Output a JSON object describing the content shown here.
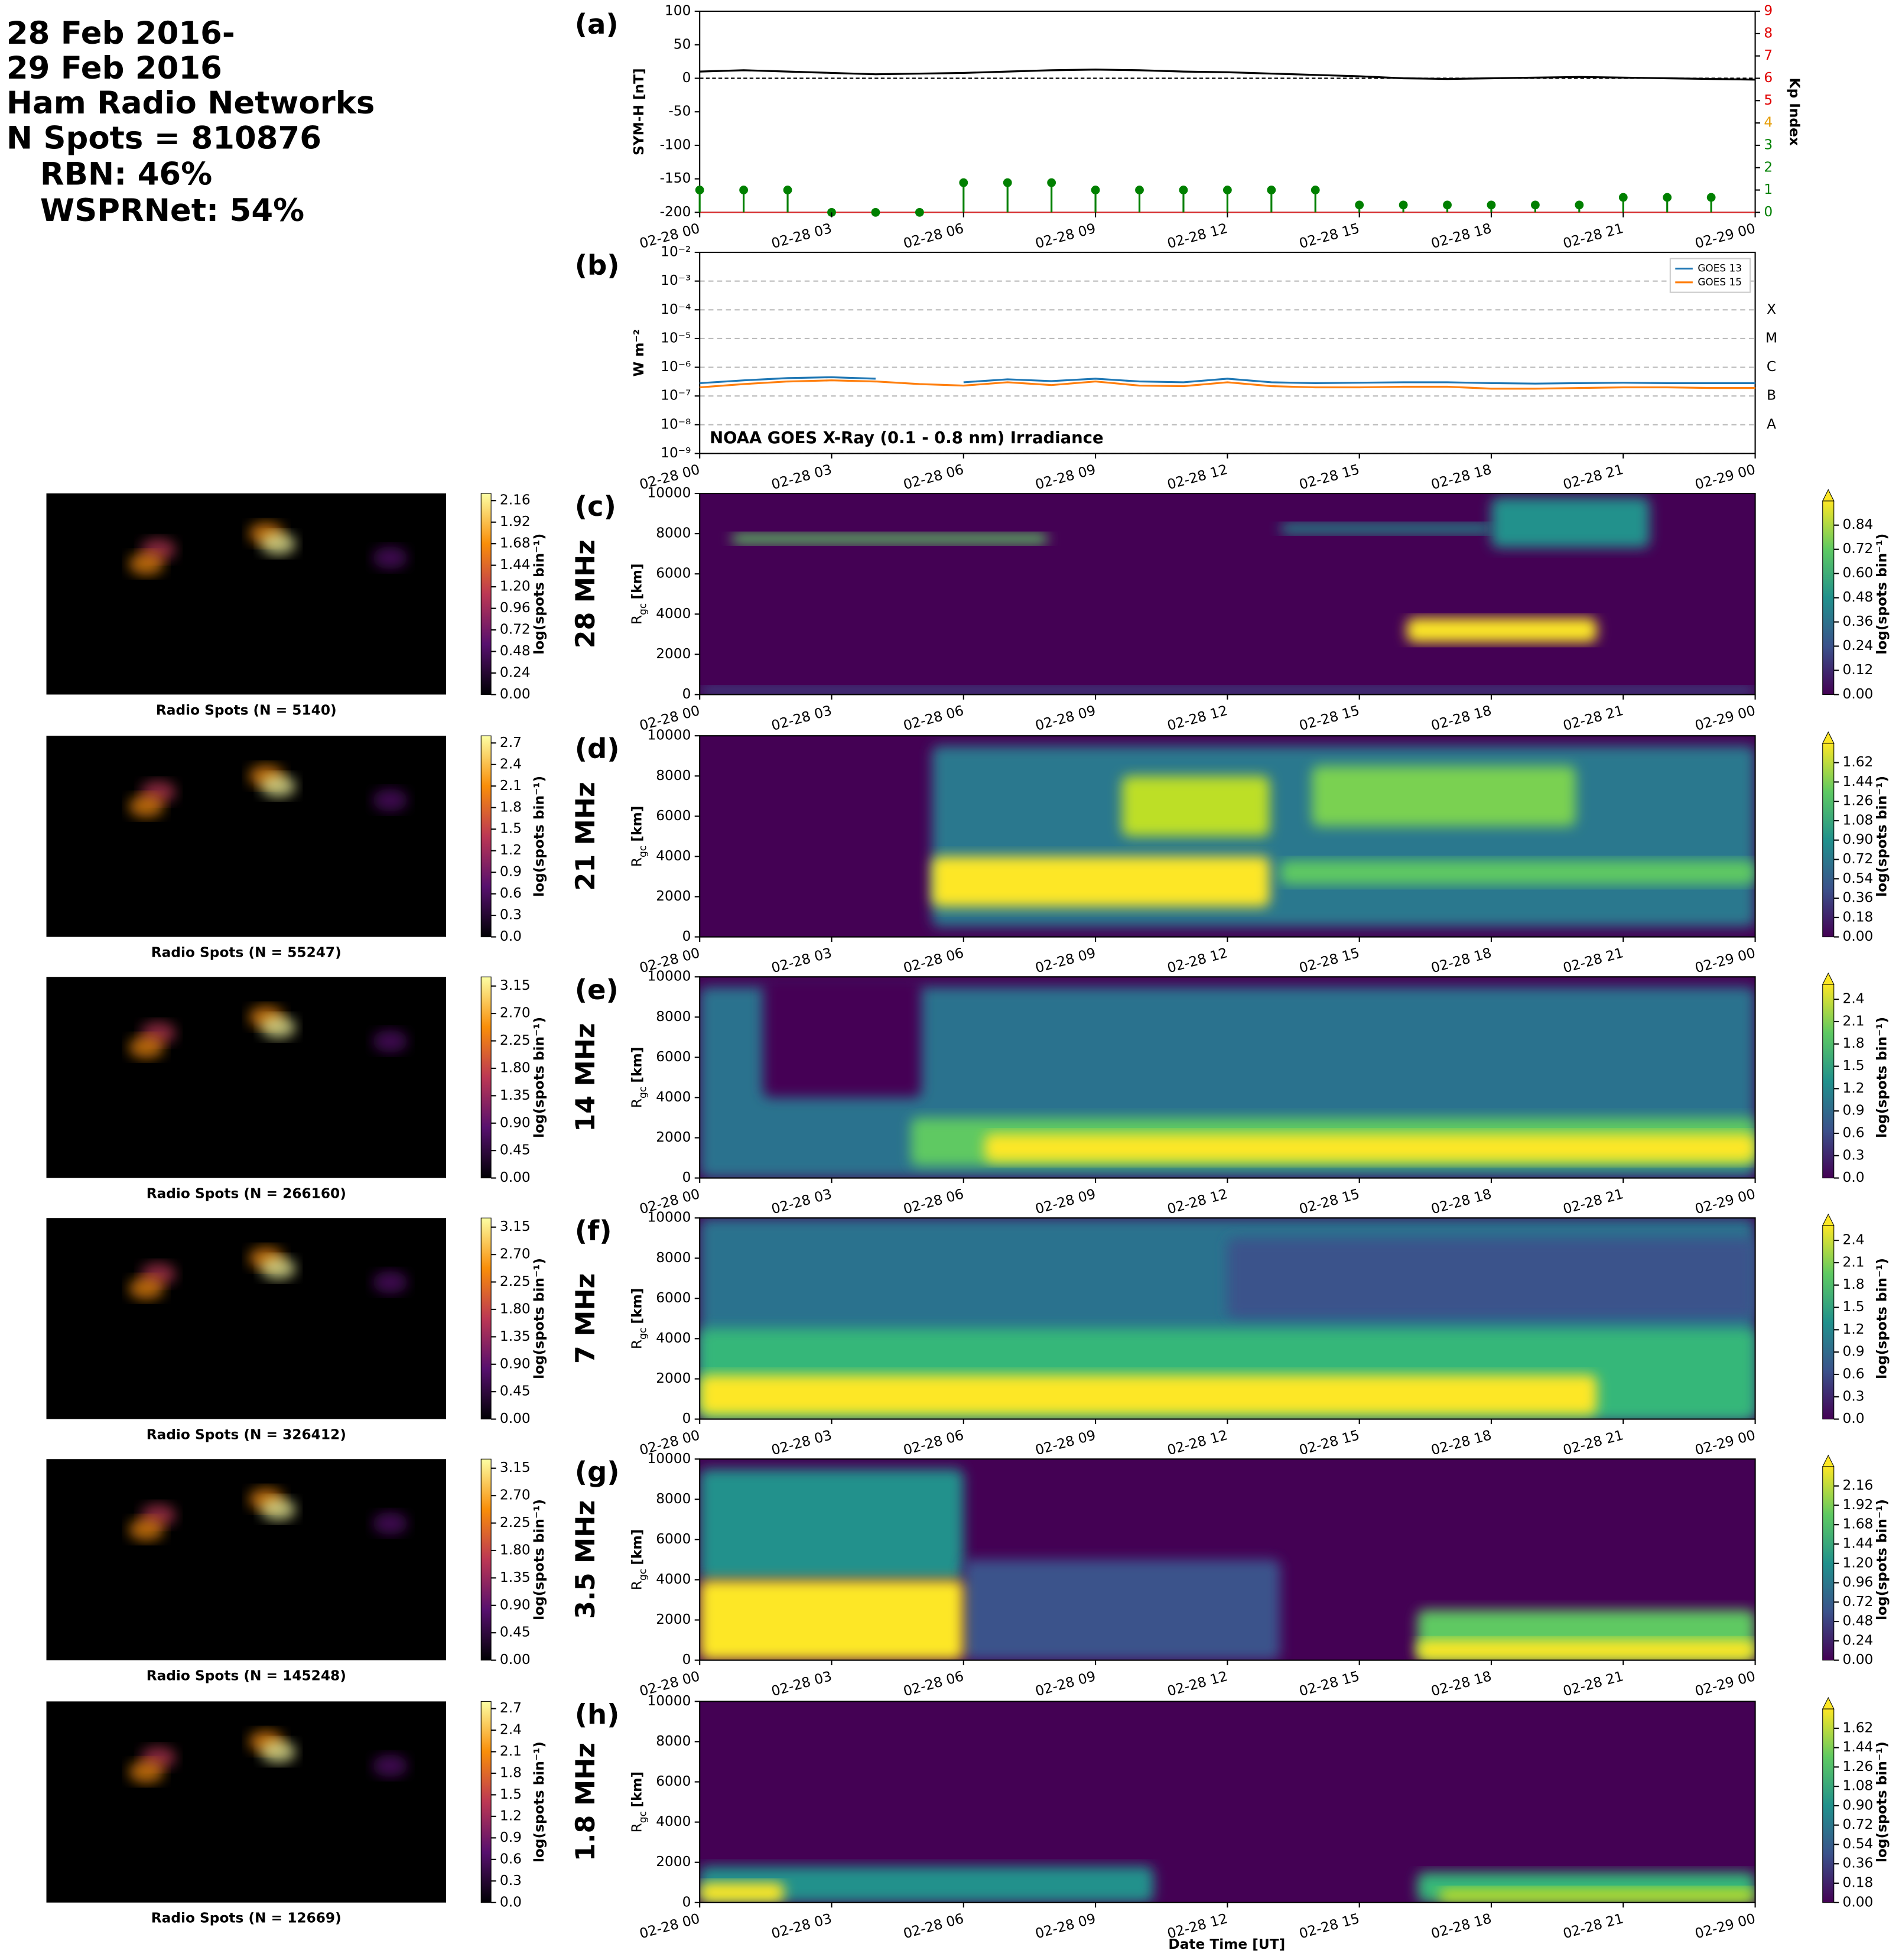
{
  "header": {
    "lines": [
      "28 Feb 2016-",
      "29 Feb 2016",
      "Ham Radio Networks",
      "N Spots = 810876",
      "RBN: 46%",
      "WSPRNet: 54%"
    ]
  },
  "time_axis": {
    "x": [
      "02-28 00",
      "02-28 01",
      "02-28 02",
      "02-28 03",
      "02-28 04",
      "02-28 05",
      "02-28 06",
      "02-28 07",
      "02-28 08",
      "02-28 09",
      "02-28 10",
      "02-28 11",
      "02-28 12",
      "02-28 13",
      "02-28 14",
      "02-28 15",
      "02-28 16",
      "02-28 17",
      "02-28 18",
      "02-28 19",
      "02-28 20",
      "02-28 21",
      "02-28 22",
      "02-28 23",
      "02-29 00"
    ],
    "xticks": [
      "02-28 00",
      "02-28 03",
      "02-28 06",
      "02-28 09",
      "02-28 12",
      "02-28 15",
      "02-28 18",
      "02-28 21",
      "02-29 00"
    ],
    "xlabel": "Date Time [UT]"
  },
  "chart_data": [
    {
      "type": "line",
      "panel": "(a)",
      "ylabel": "SYM-H [nT]",
      "y2label": "Kp Index",
      "ylim": [
        -200,
        100
      ],
      "yticks": [
        -200,
        -150,
        -100,
        -50,
        0,
        50,
        100
      ],
      "y2lim": [
        0,
        9
      ],
      "y2ticks": [
        0,
        1,
        2,
        3,
        4,
        5,
        6,
        7,
        8,
        9
      ],
      "y2tick_colors": [
        "#008000",
        "#008000",
        "#008000",
        "#008000",
        "#e69b00",
        "#e00000",
        "#e00000",
        "#e00000",
        "#e00000",
        "#e00000"
      ],
      "zero_line": true,
      "series": [
        {
          "color": "#000000",
          "values": [
            10,
            12,
            10,
            8,
            6,
            7,
            8,
            10,
            12,
            13,
            12,
            10,
            9,
            7,
            5,
            3,
            0,
            -1,
            0,
            1,
            2,
            1,
            0,
            -1,
            -2
          ]
        },
        {
          "color": "#008000",
          "axis": "y2",
          "values": [
            1,
            1,
            1,
            0,
            0,
            0,
            1.33,
            1.33,
            1.33,
            1,
            1,
            1,
            1,
            1,
            1,
            0.33,
            0.33,
            0.33,
            0.33,
            0.33,
            0.33,
            0.67,
            0.67,
            0.67
          ]
        }
      ]
    },
    {
      "type": "log-line",
      "panel": "(b)",
      "ylabel": "W m⁻²",
      "log_scale": true,
      "grid": true,
      "ylim": [
        1e-09,
        0.01
      ],
      "yticks": [
        {
          "value": 1e-09,
          "label": "10⁻⁹"
        },
        {
          "value": 1e-08,
          "label": "10⁻⁸"
        },
        {
          "value": 1e-07,
          "label": "10⁻⁷"
        },
        {
          "value": 1e-06,
          "label": "10⁻⁶"
        },
        {
          "value": 1e-05,
          "label": "10⁻⁵"
        },
        {
          "value": 0.0001,
          "label": "10⁻⁴"
        },
        {
          "value": 0.001,
          "label": "10⁻³"
        },
        {
          "value": 0.01,
          "label": "10⁻²"
        }
      ],
      "flare_classes": [
        {
          "value": 1e-08,
          "label": "A"
        },
        {
          "value": 1e-07,
          "label": "B"
        },
        {
          "value": 1e-06,
          "label": "C"
        },
        {
          "value": 1e-05,
          "label": "M"
        },
        {
          "value": 0.0001,
          "label": "X"
        }
      ],
      "annotation": "NOAA GOES X-Ray (0.1 - 0.8 nm) Irradiance",
      "legend_loc": "upper right",
      "series": [
        {
          "name": "GOES 13",
          "color": "#1f77b4",
          "values": [
            2.8e-07,
            3.5e-07,
            4.2e-07,
            4.5e-07,
            4e-07,
            null,
            3e-07,
            3.8e-07,
            3.3e-07,
            4e-07,
            3.2e-07,
            3e-07,
            4e-07,
            3e-07,
            2.8e-07,
            2.9e-07,
            3e-07,
            3e-07,
            2.8e-07,
            2.7e-07,
            2.8e-07,
            2.9e-07,
            2.8e-07,
            2.8e-07,
            2.8e-07
          ]
        },
        {
          "name": "GOES 15",
          "color": "#ff7f0e",
          "values": [
            2e-07,
            2.6e-07,
            3.2e-07,
            3.5e-07,
            3.2e-07,
            2.6e-07,
            2.3e-07,
            3e-07,
            2.4e-07,
            3.2e-07,
            2.3e-07,
            2.2e-07,
            3e-07,
            2.2e-07,
            2e-07,
            2e-07,
            2.1e-07,
            2.1e-07,
            1.8e-07,
            1.8e-07,
            1.9e-07,
            2e-07,
            2e-07,
            1.9e-07,
            1.9e-07
          ]
        }
      ]
    },
    {
      "type": "heatmap",
      "panel": "(c)",
      "band": "28 MHz",
      "ylabel": "R",
      "ylabel_sub": "gc",
      "ylabel_unit": "[km]",
      "ylim": [
        0,
        10000
      ],
      "yticks": [
        0,
        2000,
        4000,
        6000,
        8000,
        10000
      ],
      "colorbar": {
        "label": "log(spots bin⁻¹)",
        "extend": "max",
        "clim": [
          0,
          0.96
        ],
        "ticks": [
          {
            "value": 0,
            "label": "0.00"
          },
          0.12,
          0.24,
          0.36,
          0.48,
          {
            "value": 0.6,
            "label": "0.60"
          },
          0.72,
          0.84
        ]
      },
      "map": {
        "title": "Radio Spots (N = 5140)",
        "clabel": "log(spots bin⁻¹)",
        "clim": [
          0,
          2.24
        ],
        "cticks": [
          {
            "value": 0,
            "label": "0.00"
          },
          0.24,
          0.48,
          0.72,
          0.96,
          {
            "value": 1.2,
            "label": "1.20"
          },
          1.44,
          1.68,
          1.92,
          2.16
        ]
      }
    },
    {
      "type": "heatmap",
      "panel": "(d)",
      "band": "21 MHz",
      "ylabel": "R",
      "ylabel_sub": "gc",
      "ylabel_unit": "[km]",
      "ylim": [
        0,
        10000
      ],
      "yticks": [
        0,
        2000,
        4000,
        6000,
        8000,
        10000
      ],
      "colorbar": {
        "label": "log(spots bin⁻¹)",
        "extend": "max",
        "clim": [
          0,
          1.8
        ],
        "ticks": [
          {
            "value": 0,
            "label": "0.00"
          },
          0.18,
          0.36,
          0.54,
          0.72,
          {
            "value": 0.9,
            "label": "0.90"
          },
          1.08,
          1.26,
          1.44,
          1.62
        ]
      },
      "map": {
        "title": "Radio Spots (N = 55247)",
        "clabel": "log(spots bin⁻¹)",
        "clim": [
          0,
          2.8
        ],
        "cticks": [
          {
            "value": 0,
            "label": "0.0"
          },
          0.3,
          0.6,
          0.9,
          1.2,
          1.5,
          1.8,
          2.1,
          2.4,
          2.7
        ]
      }
    },
    {
      "type": "heatmap",
      "panel": "(e)",
      "band": "14 MHz",
      "ylabel": "R",
      "ylabel_sub": "gc",
      "ylabel_unit": "[km]",
      "ylim": [
        0,
        10000
      ],
      "yticks": [
        0,
        2000,
        4000,
        6000,
        8000,
        10000
      ],
      "colorbar": {
        "label": "log(spots bin⁻¹)",
        "extend": "max",
        "clim": [
          0,
          2.6
        ],
        "ticks": [
          {
            "value": 0,
            "label": "0.0"
          },
          0.3,
          0.6,
          0.9,
          1.2,
          1.5,
          1.8,
          2.1,
          2.4
        ]
      },
      "map": {
        "title": "Radio Spots (N = 266160)",
        "clabel": "log(spots bin⁻¹)",
        "clim": [
          0,
          3.3
        ],
        "cticks": [
          {
            "value": 0,
            "label": "0.00"
          },
          0.45,
          {
            "value": 0.9,
            "label": "0.90"
          },
          1.35,
          {
            "value": 1.8,
            "label": "1.80"
          },
          2.25,
          {
            "value": 2.7,
            "label": "2.70"
          },
          3.15
        ]
      }
    },
    {
      "type": "heatmap",
      "panel": "(f)",
      "band": "7 MHz",
      "ylabel": "R",
      "ylabel_sub": "gc",
      "ylabel_unit": "[km]",
      "ylim": [
        0,
        10000
      ],
      "yticks": [
        0,
        2000,
        4000,
        6000,
        8000,
        10000
      ],
      "colorbar": {
        "label": "log(spots bin⁻¹)",
        "extend": "max",
        "clim": [
          0,
          2.6
        ],
        "ticks": [
          {
            "value": 0,
            "label": "0.0"
          },
          0.3,
          0.6,
          0.9,
          1.2,
          1.5,
          1.8,
          2.1,
          2.4
        ]
      },
      "map": {
        "title": "Radio Spots (N = 326412)",
        "clabel": "log(spots bin⁻¹)",
        "clim": [
          0,
          3.3
        ],
        "cticks": [
          {
            "value": 0,
            "label": "0.00"
          },
          0.45,
          {
            "value": 0.9,
            "label": "0.90"
          },
          1.35,
          {
            "value": 1.8,
            "label": "1.80"
          },
          2.25,
          {
            "value": 2.7,
            "label": "2.70"
          },
          3.15
        ]
      }
    },
    {
      "type": "heatmap",
      "panel": "(g)",
      "band": "3.5 MHz",
      "ylabel": "R",
      "ylabel_sub": "gc",
      "ylabel_unit": "[km]",
      "ylim": [
        0,
        10000
      ],
      "yticks": [
        0,
        2000,
        4000,
        6000,
        8000,
        10000
      ],
      "colorbar": {
        "label": "log(spots bin⁻¹)",
        "extend": "max",
        "clim": [
          0,
          2.4
        ],
        "ticks": [
          {
            "value": 0,
            "label": "0.00"
          },
          0.24,
          0.48,
          0.72,
          0.96,
          {
            "value": 1.2,
            "label": "1.20"
          },
          1.44,
          1.68,
          1.92,
          2.16
        ]
      },
      "map": {
        "title": "Radio Spots (N = 145248)",
        "clabel": "log(spots bin⁻¹)",
        "clim": [
          0,
          3.3
        ],
        "cticks": [
          {
            "value": 0,
            "label": "0.00"
          },
          0.45,
          {
            "value": 0.9,
            "label": "0.90"
          },
          1.35,
          {
            "value": 1.8,
            "label": "1.80"
          },
          2.25,
          {
            "value": 2.7,
            "label": "2.70"
          },
          3.15
        ]
      }
    },
    {
      "type": "heatmap",
      "panel": "(h)",
      "band": "1.8 MHz",
      "ylabel": "R",
      "ylabel_sub": "gc",
      "ylabel_unit": "[km]",
      "ylim": [
        0,
        10000
      ],
      "yticks": [
        0,
        2000,
        4000,
        6000,
        8000,
        10000
      ],
      "colorbar": {
        "label": "log(spots bin⁻¹)",
        "extend": "max",
        "clim": [
          0,
          1.8
        ],
        "ticks": [
          {
            "value": 0,
            "label": "0.00"
          },
          0.18,
          0.36,
          0.54,
          0.72,
          {
            "value": 0.9,
            "label": "0.90"
          },
          1.08,
          1.26,
          1.44,
          1.62
        ]
      },
      "map": {
        "title": "Radio Spots (N = 12669)",
        "clabel": "log(spots bin⁻¹)",
        "clim": [
          0,
          2.8
        ],
        "cticks": [
          {
            "value": 0,
            "label": "0.0"
          },
          0.3,
          0.6,
          0.9,
          1.2,
          1.5,
          1.8,
          2.1,
          2.4,
          2.7
        ]
      }
    }
  ]
}
